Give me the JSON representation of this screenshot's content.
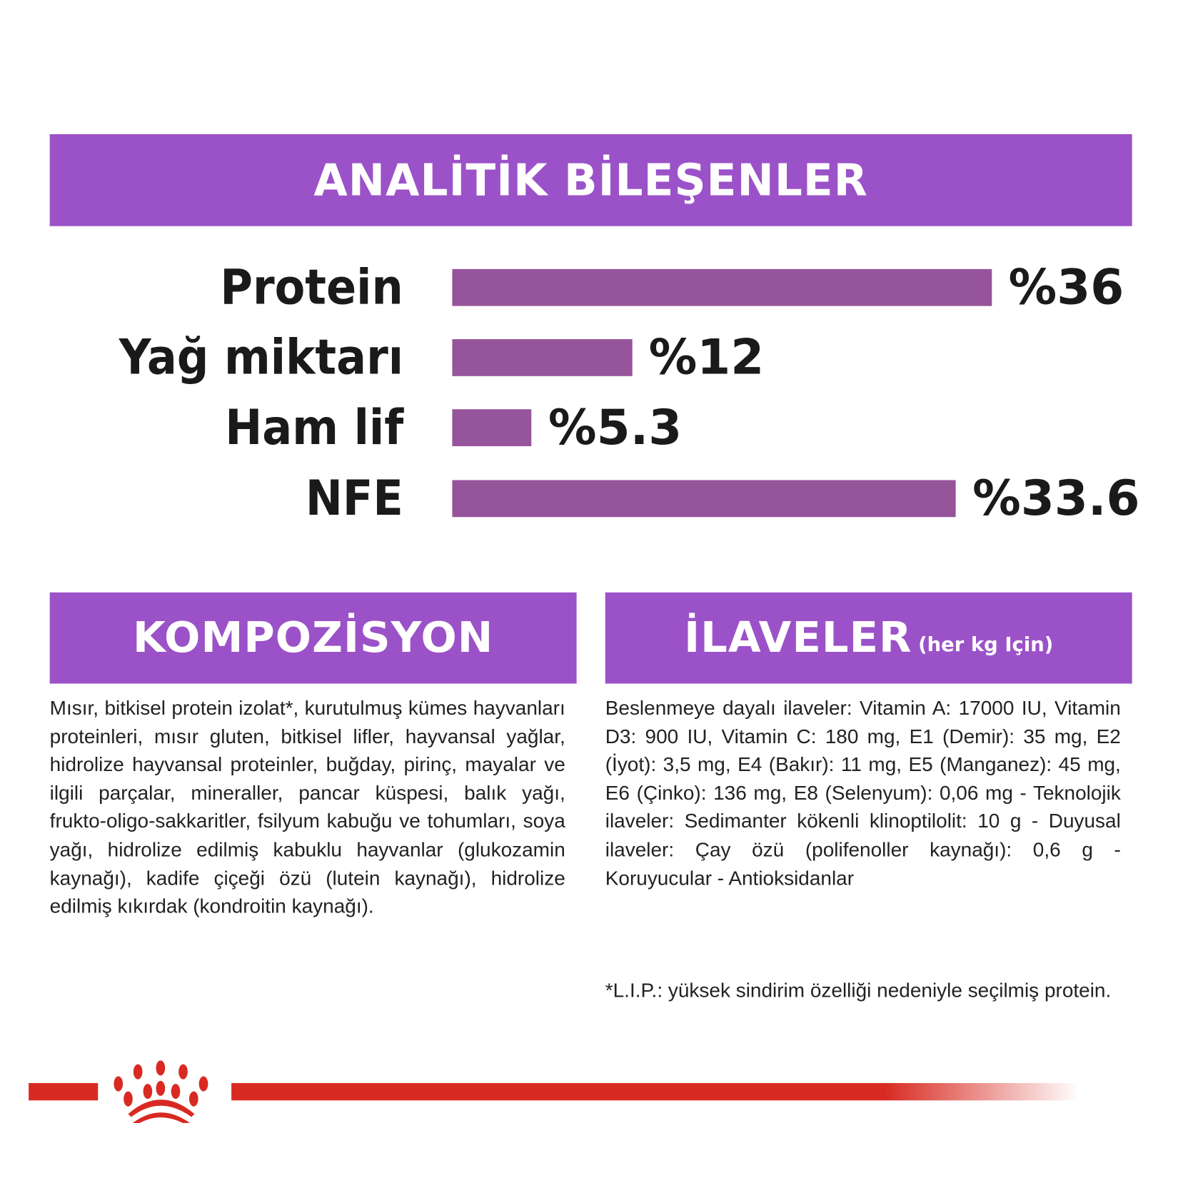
{
  "analytic": {
    "title": "ANALİTİK BİLEŞENLER",
    "items": [
      {
        "label": "Protein",
        "value_text": "%36",
        "value": 36
      },
      {
        "label": "Yağ miktarı",
        "value_text": "%12",
        "value": 12
      },
      {
        "label": "Ham lif",
        "value_text": "%5.3",
        "value": 5.3
      },
      {
        "label": "NFE",
        "value_text": "%33.6",
        "value": 33.6
      }
    ]
  },
  "composition": {
    "title": "KOMPOZİSYON",
    "text": "Mısır, bitkisel protein izolat*, kurutulmuş kümes hayvanları proteinleri, mısır gluten, bitkisel lifler, hayvansal yağlar, hidrolize hayvansal proteinler, buğday, pirinç, mayalar ve ilgili parçalar, mineraller, pancar küspesi, balık yağı, frukto-oligo-sakkaritler, fsilyum kabuğu ve tohumları, soya yağı, hidrolize edilmiş kabuklu hayvanlar (glukozamin kaynağı), kadife çiçeği özü (lutein kaynağı), hidrolize edilmiş kıkırdak (kondroitin kaynağı)."
  },
  "additives": {
    "title": "İLAVELER",
    "subtitle": "(her kg Için)",
    "text": "Beslenmeye dayalı ilaveler: Vitamin A: 17000 IU, Vitamin D3: 900 IU, Vitamin C: 180 mg, E1 (Demir): 35 mg, E2 (İyot): 3,5 mg, E4 (Bakır): 11 mg, E5 (Manganez): 45 mg, E6 (Çinko): 136 mg, E8 (Selenyum): 0,06 mg - Teknolojik ilaveler: Sedimanter kökenli klinoptilolit: 10 g - Duyusal ilaveler: Çay özü (polifenoller kaynağı): 0,6 g - Koruyucular - Antioksidanlar",
    "footnote": "*L.I.P.: yüksek sindirim özelliği nedeniyle seçilmiş protein."
  },
  "colors": {
    "header": "#9b52c8",
    "bar": "#96549a",
    "brand_red": "#d82a22"
  },
  "logo": {
    "icon": "royal-canin-crown-logo"
  }
}
